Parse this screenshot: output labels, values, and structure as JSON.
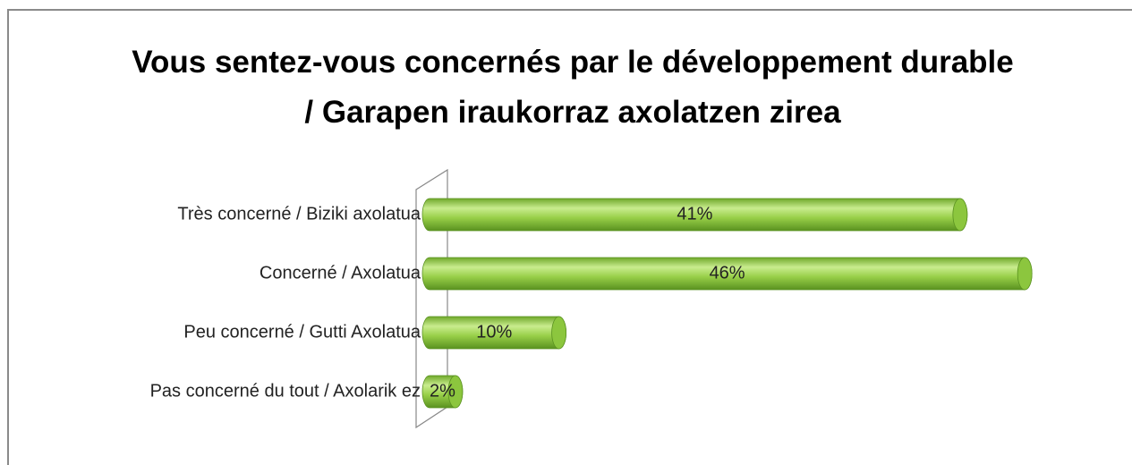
{
  "chart_data": {
    "type": "bar",
    "orientation": "horizontal",
    "title": "Vous sentez-vous concernés par le développement durable / Garapen iraukorraz axolatzen zirea",
    "categories": [
      "Très concerné / Biziki axolatua",
      "Concerné / Axolatua",
      "Peu concerné / Gutti Axolatua",
      "Pas concerné du tout / Axolarik ez"
    ],
    "values": [
      41,
      46,
      10,
      2
    ],
    "value_labels": [
      "41%",
      "46%",
      "10%",
      "2%"
    ],
    "color": "#8cc63e"
  }
}
